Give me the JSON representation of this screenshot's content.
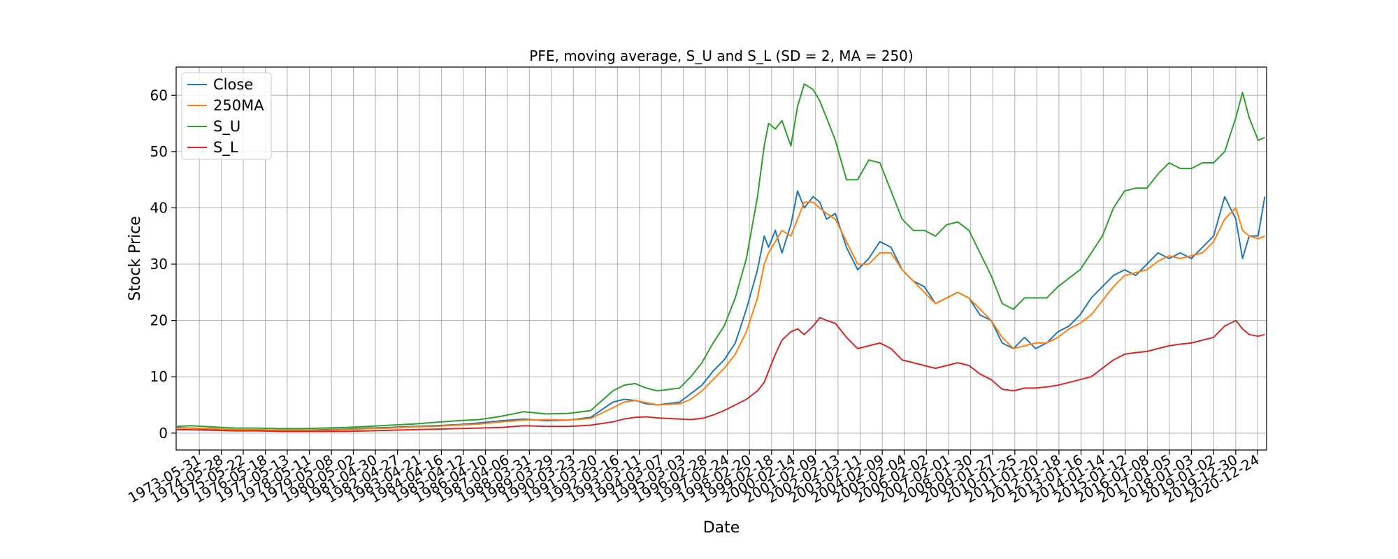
{
  "chart_data": {
    "type": "line",
    "title": "PFE, moving average, S_U and S_L (SD = 2, MA = 250)",
    "xlabel": "Date",
    "ylabel": "Stock Price",
    "xlim": [
      "1972-05-15",
      "2021-05-20"
    ],
    "ylim": [
      -3,
      65
    ],
    "yticks": [
      0,
      10,
      20,
      30,
      40,
      50,
      60
    ],
    "grid": true,
    "legend": "top-left",
    "xtick_labels": [
      "1973-05-31",
      "1974-05-28",
      "1975-05-22",
      "1976-05-18",
      "1977-05-13",
      "1978-05-11",
      "1979-05-08",
      "1980-05-02",
      "1981-04-30",
      "1982-04-27",
      "1983-04-21",
      "1984-04-16",
      "1985-04-12",
      "1986-04-10",
      "1987-04-06",
      "1988-03-31",
      "1989-03-29",
      "1990-03-23",
      "1991-03-20",
      "1992-03-16",
      "1993-03-11",
      "1994-03-07",
      "1995-03-03",
      "1996-02-28",
      "1997-02-24",
      "1998-02-20",
      "1999-02-18",
      "2000-02-14",
      "2001-02-09",
      "2002-02-13",
      "2003-02-11",
      "2004-02-09",
      "2005-02-04",
      "2006-02-02",
      "2007-02-01",
      "2008-01-30",
      "2009-01-27",
      "2010-01-25",
      "2011-01-20",
      "2012-01-18",
      "2013-01-16",
      "2014-01-14",
      "2015-01-12",
      "2016-01-08",
      "2017-01-05",
      "2018-01-03",
      "2019-01-02",
      "2019-12-30",
      "2020-12-24"
    ],
    "x": [
      1972.4,
      1973.0,
      1974.0,
      1975.0,
      1976.0,
      1977.0,
      1978.0,
      1979.0,
      1980.0,
      1981.0,
      1982.0,
      1983.0,
      1984.0,
      1985.0,
      1986.0,
      1987.0,
      1988.0,
      1989.0,
      1990.0,
      1991.0,
      1992.0,
      1992.5,
      1993.0,
      1993.5,
      1994.0,
      1995.0,
      1995.5,
      1996.0,
      1996.5,
      1997.0,
      1997.5,
      1998.0,
      1998.5,
      1998.8,
      1999.0,
      1999.3,
      1999.6,
      2000.0,
      2000.3,
      2000.6,
      2001.0,
      2001.3,
      2001.6,
      2002.0,
      2002.5,
      2003.0,
      2003.5,
      2004.0,
      2004.5,
      2005.0,
      2005.5,
      2006.0,
      2006.5,
      2007.0,
      2007.5,
      2008.0,
      2008.5,
      2009.0,
      2009.5,
      2010.0,
      2010.5,
      2011.0,
      2011.5,
      2012.0,
      2012.5,
      2013.0,
      2013.5,
      2014.0,
      2014.5,
      2015.0,
      2015.5,
      2016.0,
      2016.5,
      2017.0,
      2017.5,
      2018.0,
      2018.5,
      2019.0,
      2019.5,
      2020.0,
      2020.3,
      2020.6,
      2021.0,
      2021.3
    ],
    "series": [
      {
        "name": "Close",
        "color": "#1f77b4",
        "values": [
          1.0,
          0.9,
          0.7,
          0.6,
          0.6,
          0.5,
          0.5,
          0.6,
          0.7,
          0.9,
          1.0,
          1.2,
          1.3,
          1.5,
          1.8,
          2.2,
          2.5,
          2.2,
          2.3,
          2.8,
          5.5,
          6.0,
          5.8,
          5.2,
          5.0,
          5.5,
          7.0,
          8.5,
          11.0,
          13.0,
          16.0,
          22.0,
          29.0,
          35.0,
          33.0,
          36.0,
          32.0,
          37.0,
          43.0,
          40.0,
          42.0,
          41.0,
          38.0,
          39.0,
          33.0,
          29.0,
          31.0,
          34.0,
          33.0,
          29.0,
          27.0,
          26.0,
          23.0,
          24.0,
          25.0,
          24.0,
          21.0,
          20.0,
          16.0,
          15.0,
          17.0,
          15.0,
          16.0,
          18.0,
          19.0,
          21.0,
          24.0,
          26.0,
          28.0,
          29.0,
          28.0,
          30.0,
          32.0,
          31.0,
          32.0,
          31.0,
          33.0,
          35.0,
          42.0,
          38.0,
          31.0,
          35.0,
          35.0,
          42.0
        ]
      },
      {
        "name": "250MA",
        "color": "#ff7f0e",
        "values": [
          0.9,
          0.9,
          0.8,
          0.6,
          0.6,
          0.5,
          0.5,
          0.5,
          0.6,
          0.8,
          0.9,
          1.1,
          1.2,
          1.4,
          1.6,
          2.0,
          2.3,
          2.4,
          2.3,
          2.6,
          4.5,
          5.5,
          5.8,
          5.4,
          5.0,
          5.2,
          6.0,
          7.5,
          9.5,
          11.5,
          14.0,
          18.0,
          24.0,
          30.0,
          32.0,
          34.0,
          36.0,
          35.0,
          38.0,
          41.0,
          41.0,
          40.0,
          39.0,
          38.0,
          34.0,
          30.0,
          30.0,
          32.0,
          32.0,
          29.0,
          27.0,
          25.0,
          23.0,
          24.0,
          25.0,
          24.0,
          22.0,
          20.0,
          17.0,
          15.0,
          15.5,
          16.0,
          16.0,
          17.0,
          18.5,
          19.5,
          21.0,
          23.5,
          26.0,
          28.0,
          28.5,
          29.0,
          30.5,
          31.5,
          31.0,
          31.5,
          32.0,
          34.0,
          38.0,
          40.0,
          36.0,
          35.0,
          34.5,
          35.0
        ]
      },
      {
        "name": "S_U",
        "color": "#2ca02c",
        "values": [
          1.2,
          1.3,
          1.1,
          0.9,
          0.9,
          0.8,
          0.8,
          0.9,
          1.0,
          1.2,
          1.4,
          1.6,
          1.9,
          2.2,
          2.4,
          3.0,
          3.8,
          3.4,
          3.5,
          4.0,
          7.5,
          8.5,
          8.8,
          8.0,
          7.5,
          8.0,
          10.0,
          12.5,
          16.0,
          19.0,
          24.0,
          31.0,
          42.0,
          51.0,
          55.0,
          54.0,
          55.5,
          51.0,
          58.0,
          62.0,
          61.0,
          59.0,
          56.0,
          52.0,
          45.0,
          45.0,
          48.5,
          48.0,
          43.0,
          38.0,
          36.0,
          36.0,
          35.0,
          37.0,
          37.5,
          36.0,
          32.0,
          28.0,
          23.0,
          22.0,
          24.0,
          24.0,
          24.0,
          26.0,
          27.5,
          29.0,
          32.0,
          35.0,
          40.0,
          43.0,
          43.5,
          43.5,
          46.0,
          48.0,
          47.0,
          47.0,
          48.0,
          48.0,
          50.0,
          56.0,
          60.5,
          56.0,
          52.0,
          52.5
        ]
      },
      {
        "name": "S_L",
        "color": "#d62728",
        "values": [
          0.6,
          0.6,
          0.5,
          0.4,
          0.4,
          0.3,
          0.3,
          0.3,
          0.3,
          0.4,
          0.5,
          0.6,
          0.7,
          0.8,
          0.9,
          1.0,
          1.3,
          1.2,
          1.2,
          1.4,
          2.0,
          2.5,
          2.8,
          2.9,
          2.7,
          2.5,
          2.4,
          2.6,
          3.2,
          4.0,
          5.0,
          6.0,
          7.5,
          9.0,
          11.0,
          14.0,
          16.5,
          18.0,
          18.5,
          17.5,
          19.0,
          20.5,
          20.0,
          19.5,
          17.0,
          15.0,
          15.5,
          16.0,
          15.0,
          13.0,
          12.5,
          12.0,
          11.5,
          12.0,
          12.5,
          12.0,
          10.5,
          9.5,
          7.8,
          7.5,
          8.0,
          8.0,
          8.2,
          8.5,
          9.0,
          9.5,
          10.0,
          11.5,
          13.0,
          14.0,
          14.3,
          14.5,
          15.0,
          15.5,
          15.8,
          16.0,
          16.5,
          17.0,
          19.0,
          20.0,
          18.5,
          17.5,
          17.2,
          17.5
        ]
      }
    ]
  }
}
